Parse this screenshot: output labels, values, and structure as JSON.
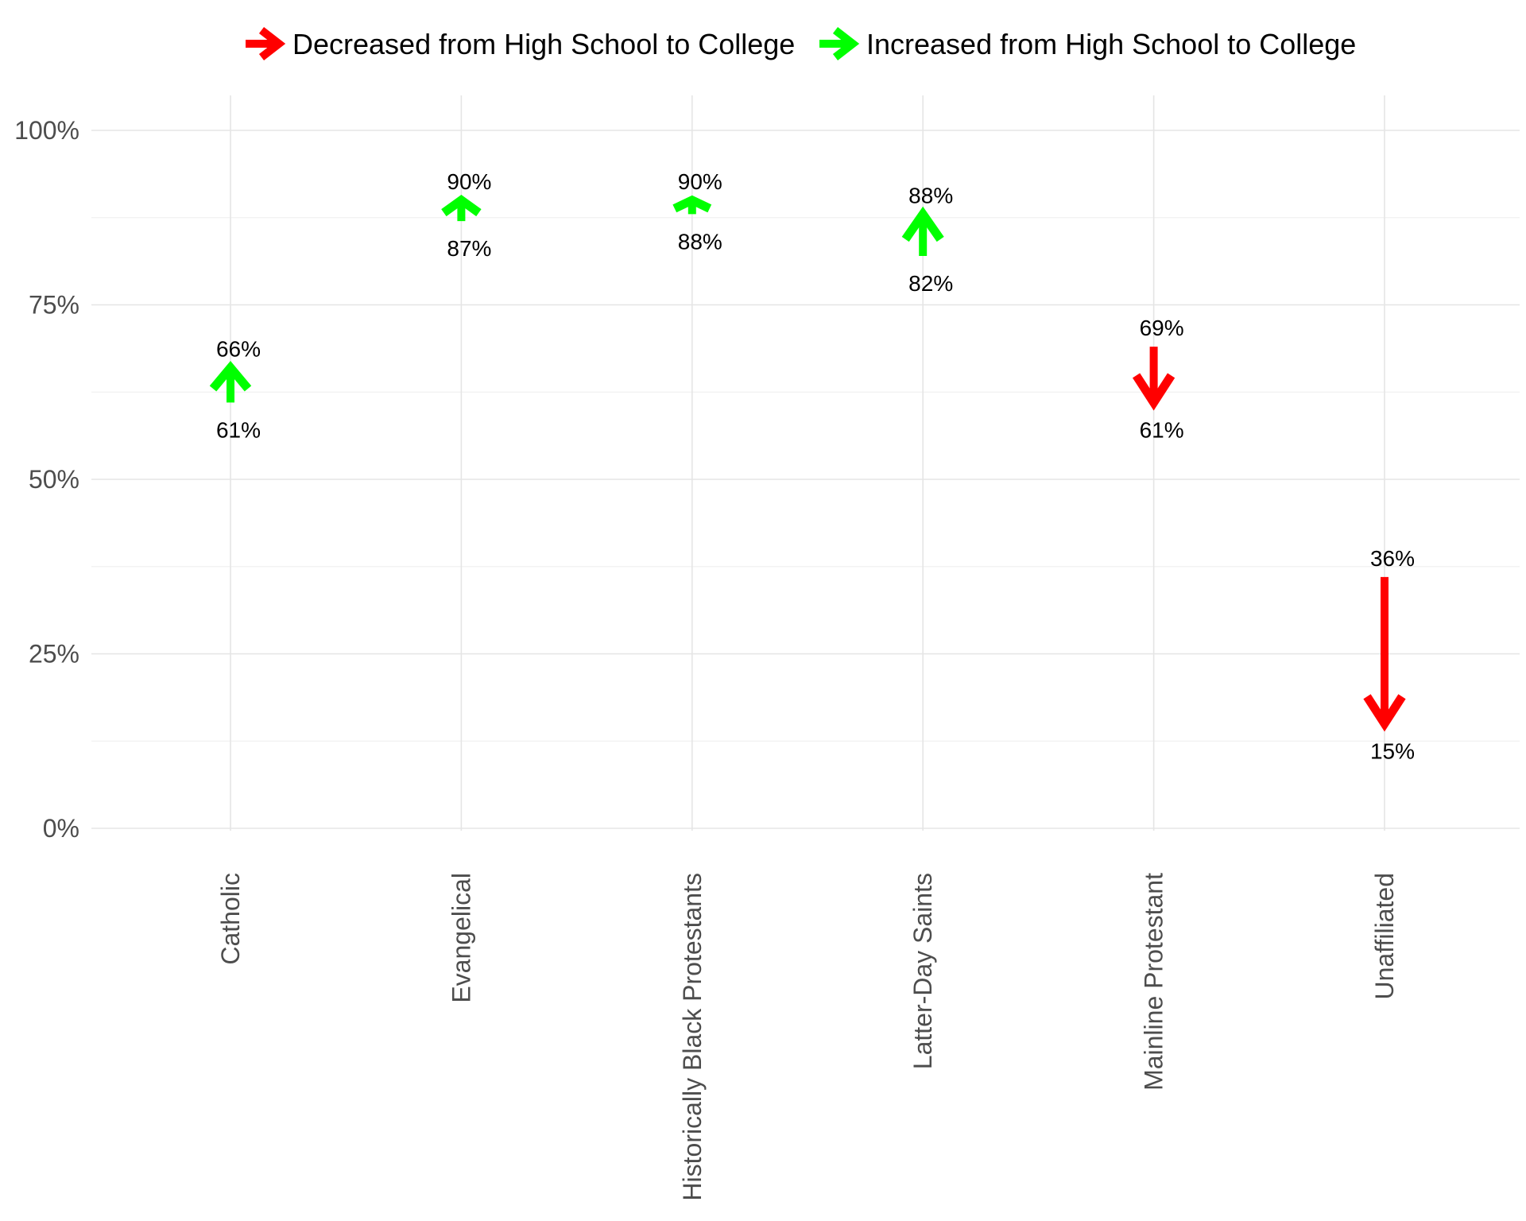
{
  "chart_data": {
    "type": "arrow",
    "title": "",
    "xlabel": "",
    "ylabel": "",
    "ylim": [
      0,
      1
    ],
    "y_ticks": [
      {
        "value": 0,
        "label": "0%"
      },
      {
        "value": 0.25,
        "label": "25%"
      },
      {
        "value": 0.5,
        "label": "50%"
      },
      {
        "value": 0.75,
        "label": "75%"
      },
      {
        "value": 1.0,
        "label": "100%"
      }
    ],
    "categories": [
      "Catholic",
      "Evangelical",
      "Historically Black Protestants",
      "Latter-Day Saints",
      "Mainline Protestant",
      "Unaffiliated"
    ],
    "series": [
      {
        "name": "High School",
        "values": [
          0.61,
          0.87,
          0.88,
          0.82,
          0.69,
          0.36
        ]
      },
      {
        "name": "College",
        "values": [
          0.66,
          0.9,
          0.9,
          0.88,
          0.61,
          0.15
        ]
      }
    ],
    "labels": {
      "start": [
        "61%",
        "87%",
        "88%",
        "82%",
        "69%",
        "36%"
      ],
      "end": [
        "66%",
        "90%",
        "90%",
        "88%",
        "61%",
        "15%"
      ]
    },
    "legend": {
      "position": "top",
      "items": [
        {
          "label": "Decreased from High School to College",
          "color": "#ff0000"
        },
        {
          "label": "Increased from High School to College",
          "color": "#00ff00"
        }
      ]
    },
    "colors": {
      "decrease": "#ff0000",
      "increase": "#00ff00"
    },
    "grid": true
  }
}
